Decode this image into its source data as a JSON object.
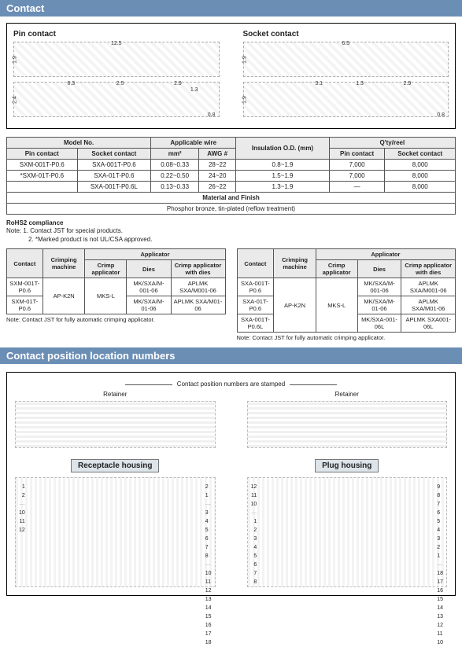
{
  "sections": {
    "contact": "Contact",
    "position": "Contact position location numbers"
  },
  "drawings": {
    "pin": {
      "title": "Pin contact",
      "top": {
        "len": "12.5",
        "h": "1.9"
      },
      "bot": {
        "a": "6.3",
        "b": "2.5",
        "c": "2.9",
        "d": "1.3",
        "h": "2.4",
        "tail": "0.8"
      }
    },
    "socket": {
      "title": "Socket contact",
      "top": {
        "len": "6.5",
        "h": "1.9"
      },
      "bot": {
        "a": "3.1",
        "b": "1.3",
        "c": "2.9",
        "h": "1.9",
        "tail": "0.8"
      }
    }
  },
  "spec_table": {
    "headers": {
      "model": "Model No.",
      "pin": "Pin contact",
      "socket": "Socket contact",
      "wire": "Applicable wire",
      "mm2": "mm²",
      "awg": "AWG #",
      "ins": "Insulation O.D.\n(mm)",
      "qty": "Q'ty/reel",
      "qpin": "Pin contact",
      "qsock": "Socket contact"
    },
    "rows": [
      {
        "pin": "SXM-001T-P0.6",
        "sock": "SXA-001T-P0.6",
        "mm2": "0.08~0.33",
        "awg": "28~22",
        "ins": "0.8~1.9",
        "qpin": "7,000",
        "qsock": "8,000"
      },
      {
        "pin": "*SXM-01T-P0.6",
        "sock": "SXA-01T-P0.6",
        "mm2": "0.22~0.50",
        "awg": "24~20",
        "ins": "1.5~1.9",
        "qpin": "7,000",
        "qsock": "8,000"
      },
      {
        "pin": "",
        "sock": "SXA-001T-P0.6L",
        "mm2": "0.13~0.33",
        "awg": "26~22",
        "ins": "1.3~1.9",
        "qpin": "—",
        "qsock": "8,000"
      }
    ],
    "matfin_hdr": "Material and Finish",
    "matfin_val": "Phosphor bronze, tin-plated (reflow treatment)"
  },
  "notes": {
    "rohs": "RoHS2 compliance",
    "n1": "Note: 1. Contact JST for special products.",
    "n2": "2. *Marked product is not UL/CSA approved."
  },
  "crimp_headers": {
    "contact": "Contact",
    "mach": "Crimping\nmachine",
    "app": "Applicator",
    "capp": "Crimp applicator",
    "dies": "Dies",
    "cad": "Crimp applicator with dies"
  },
  "crimp_left": {
    "rows": [
      {
        "c": "SXM-001T-P0.6",
        "dies": "MK/SXA/M-001-06",
        "cad": "APLMK SXA/M001-06"
      },
      {
        "c": "SXM-01T-P0.6",
        "dies": "MK/SXA/M-01-06",
        "cad": "APLMK SXA/M01-06"
      }
    ],
    "machine": "AP-K2N",
    "capp": "MKS-L",
    "foot": "Note: Contact JST for fully automatic crimping applicator."
  },
  "crimp_right": {
    "rows": [
      {
        "c": "SXA-001T-P0.6",
        "dies": "MK/SXA/M-001-06",
        "cad": "APLMK SXA/M001-06"
      },
      {
        "c": "SXA-01T-P0.6",
        "dies": "MK/SXA/M-01-06",
        "cad": "APLMK SXA/M01-06"
      },
      {
        "c": "SXA-001T-P0.6L",
        "dies": "MK/SXA-001-06L",
        "cad": "APLMK SXA001-06L"
      }
    ],
    "machine": "AP-K2N",
    "capp": "MKS-L",
    "foot": "Note: Contact JST for fully automatic crimping applicator."
  },
  "position": {
    "retainer": "Retainer",
    "stamp": "Contact position numbers are stamped",
    "recp": "Receptacle housing",
    "plug": "Plug housing",
    "recp_left_a": [
      "1",
      "2"
    ],
    "recp_left_b": [
      "10",
      "11",
      "12"
    ],
    "recp_right_a": [
      "2",
      "1"
    ],
    "recp_right_b": [
      "3",
      "4",
      "5",
      "6",
      "7",
      "8"
    ],
    "recp_right_c": [
      "10",
      "11",
      "12",
      "13",
      "14",
      "15",
      "16",
      "17",
      "18"
    ],
    "plug_left_a": [
      "12",
      "11",
      "10"
    ],
    "plug_left_b": [
      "1",
      "2",
      "3",
      "4",
      "5",
      "6",
      "7",
      "8"
    ],
    "plug_right_a": [
      "9",
      "8",
      "7",
      "6",
      "5",
      "4",
      "3",
      "2",
      "1"
    ],
    "plug_right_b": [
      "18",
      "17",
      "16",
      "15",
      "14",
      "13",
      "12",
      "11",
      "10"
    ]
  },
  "colors": {
    "header_bg": "#6b8eb5",
    "band_bg": "#dde4ea",
    "th_bg": "#eaeaea",
    "border": "#555555"
  }
}
